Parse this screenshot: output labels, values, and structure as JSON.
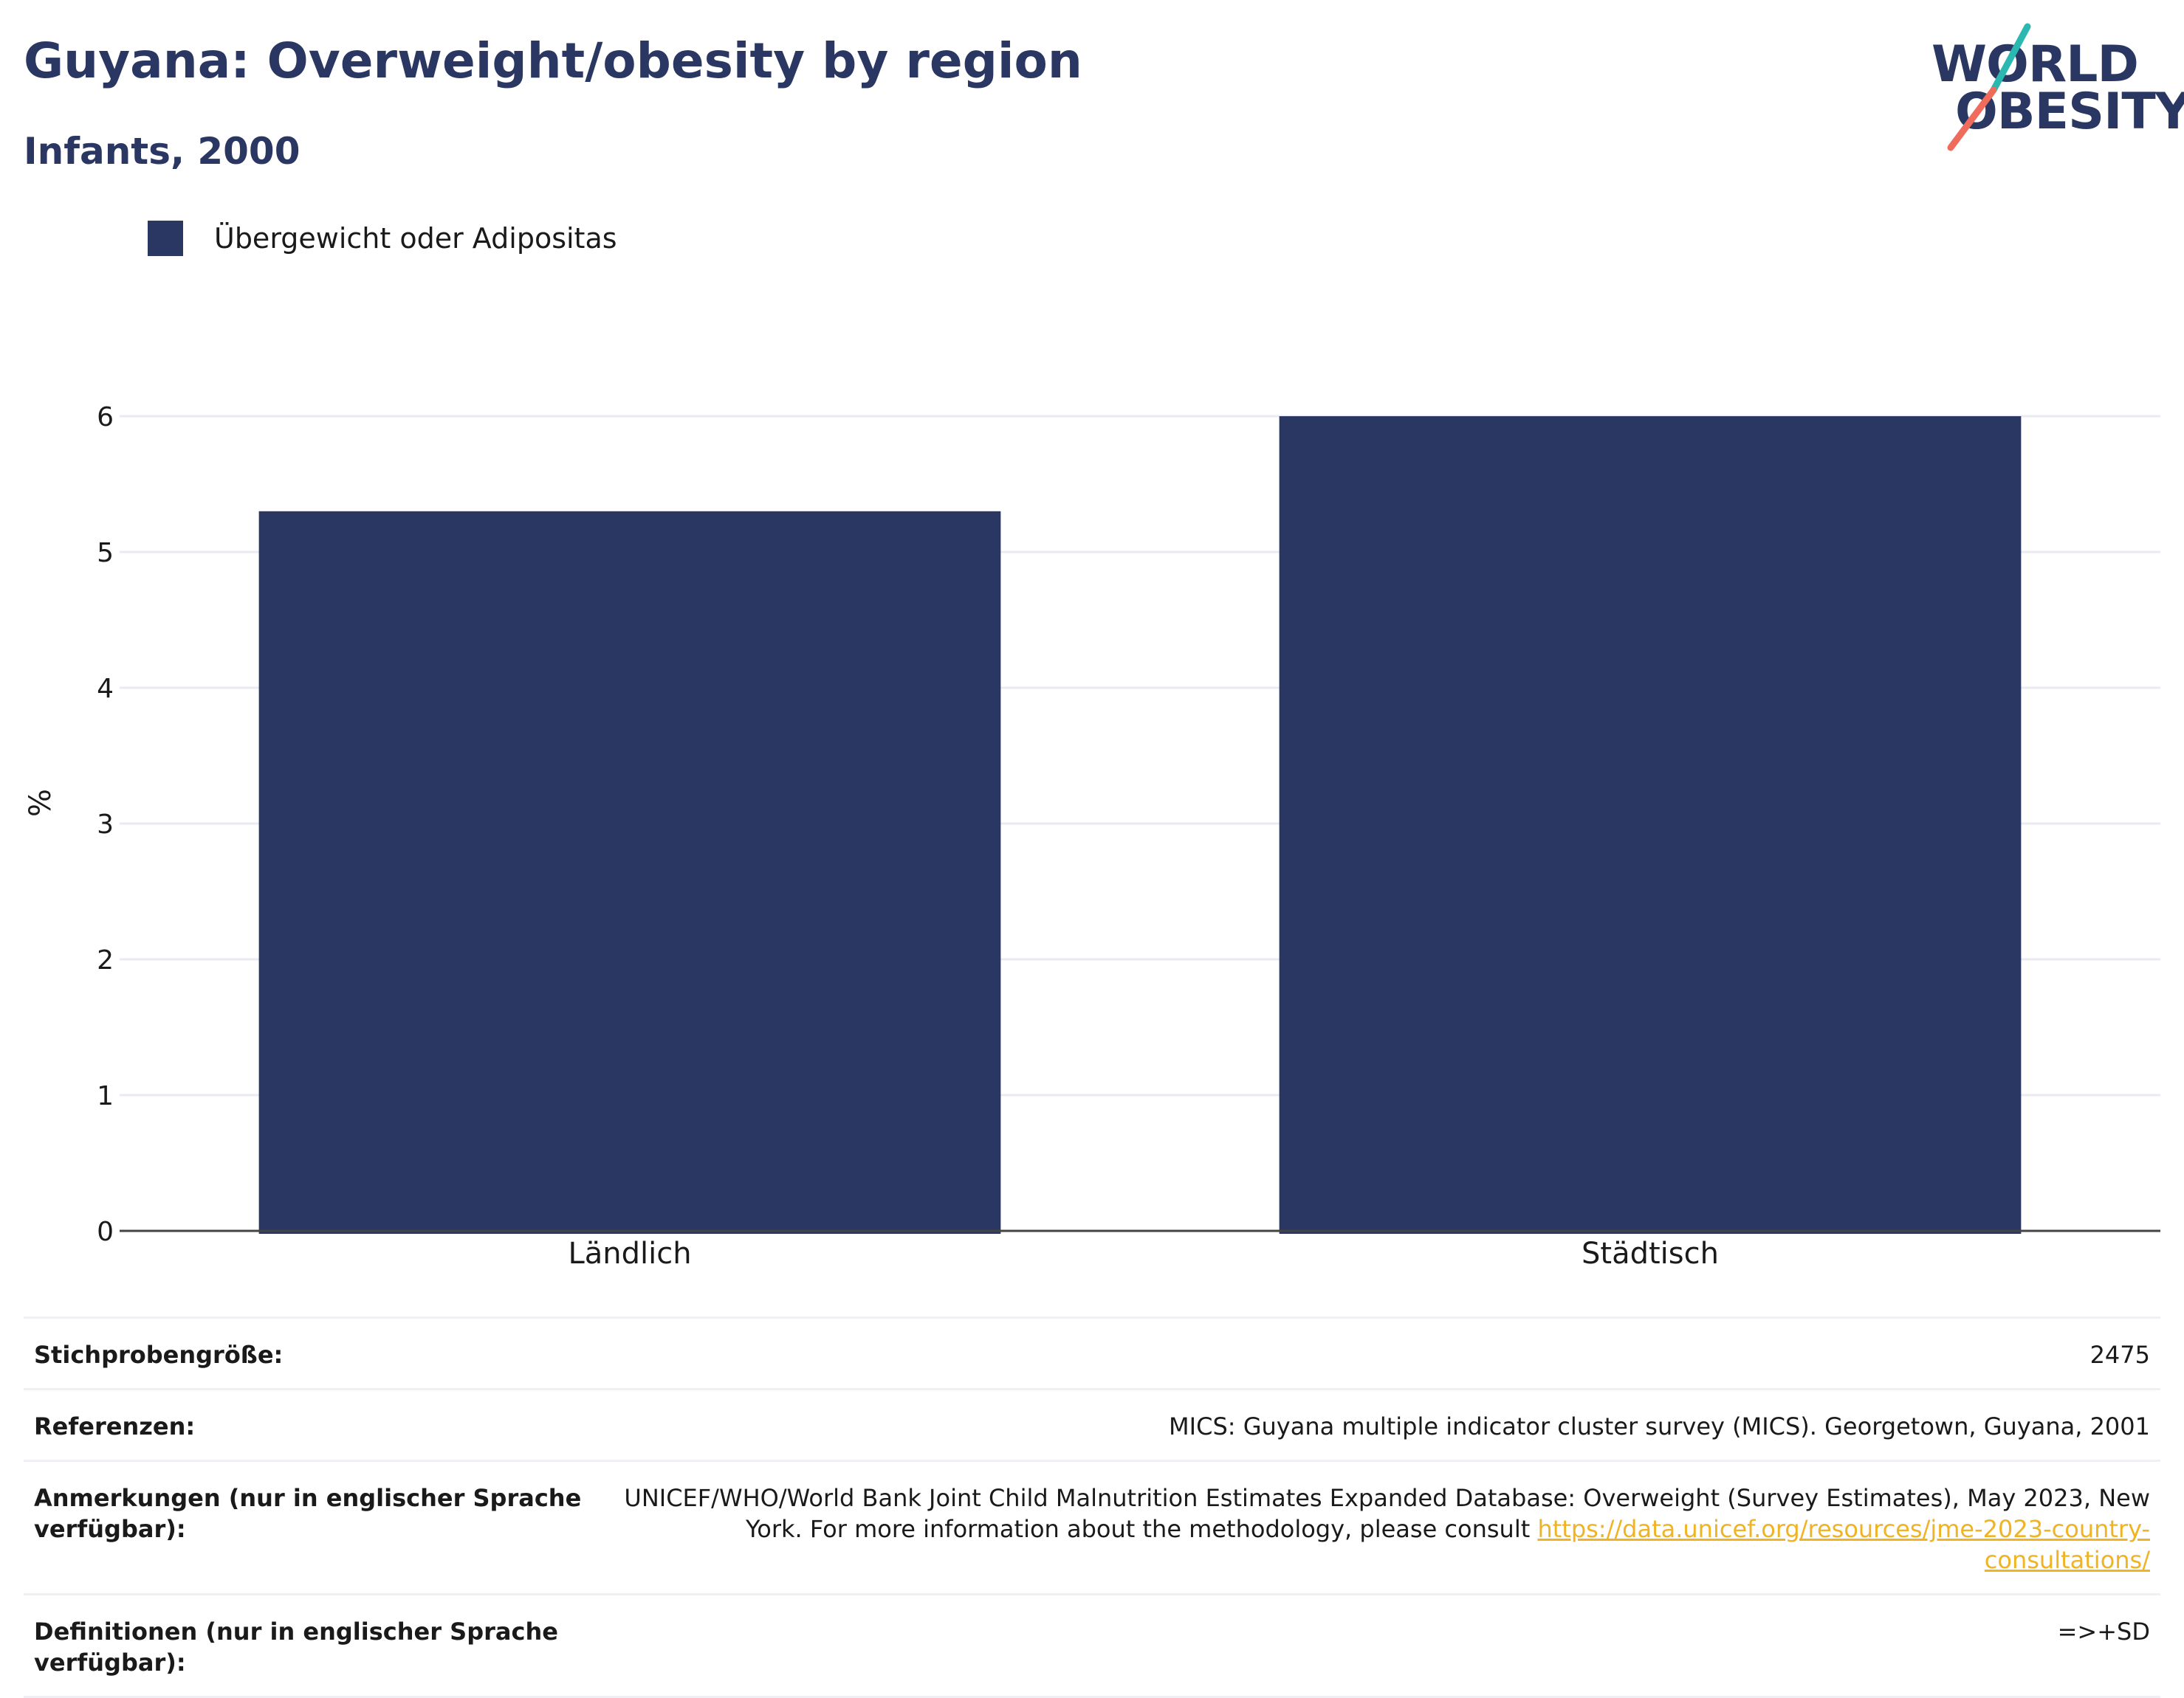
{
  "header": {
    "title": "Guyana: Overweight/obesity by region",
    "subtitle": "Infants, 2000"
  },
  "logo": {
    "line1": "WORLD",
    "line2": "OBESITY",
    "accent_teal": "#2bb8b0",
    "accent_coral": "#ef6b5b"
  },
  "colors": {
    "bar": "#2a3762",
    "title": "#2a3762",
    "link": "#f0b323",
    "grid": "#e9ebf0"
  },
  "chart_data": {
    "type": "bar",
    "categories": [
      "Ländlich",
      "Städtisch"
    ],
    "series": [
      {
        "name": "Übergewicht oder Adipositas",
        "values": [
          5.3,
          6.0
        ]
      }
    ],
    "ylabel": "%",
    "xlabel": "",
    "ylim": [
      0,
      6.2
    ],
    "yticks": [
      0,
      1,
      2,
      3,
      4,
      5,
      6
    ],
    "grid": true,
    "legend_position": "top-left"
  },
  "info_table": [
    {
      "key": "Stichprobengröße:",
      "value": "2475"
    },
    {
      "key": "Referenzen:",
      "value": "MICS: Guyana multiple indicator cluster survey (MICS). Georgetown, Guyana, 2001"
    },
    {
      "key": "Anmerkungen (nur in englischer Sprache verfügbar):",
      "value": "UNICEF/WHO/World Bank Joint Child Malnutrition Estimates Expanded Database: Overweight (Survey Estimates), May 2023, New York. For more information about the methodology, please consult ",
      "link": "https://data.unicef.org/resources/jme-2023-country-consultations/"
    },
    {
      "key": "Definitionen (nur in englischer Sprache verfügbar):",
      "value": "=>+SD"
    }
  ]
}
